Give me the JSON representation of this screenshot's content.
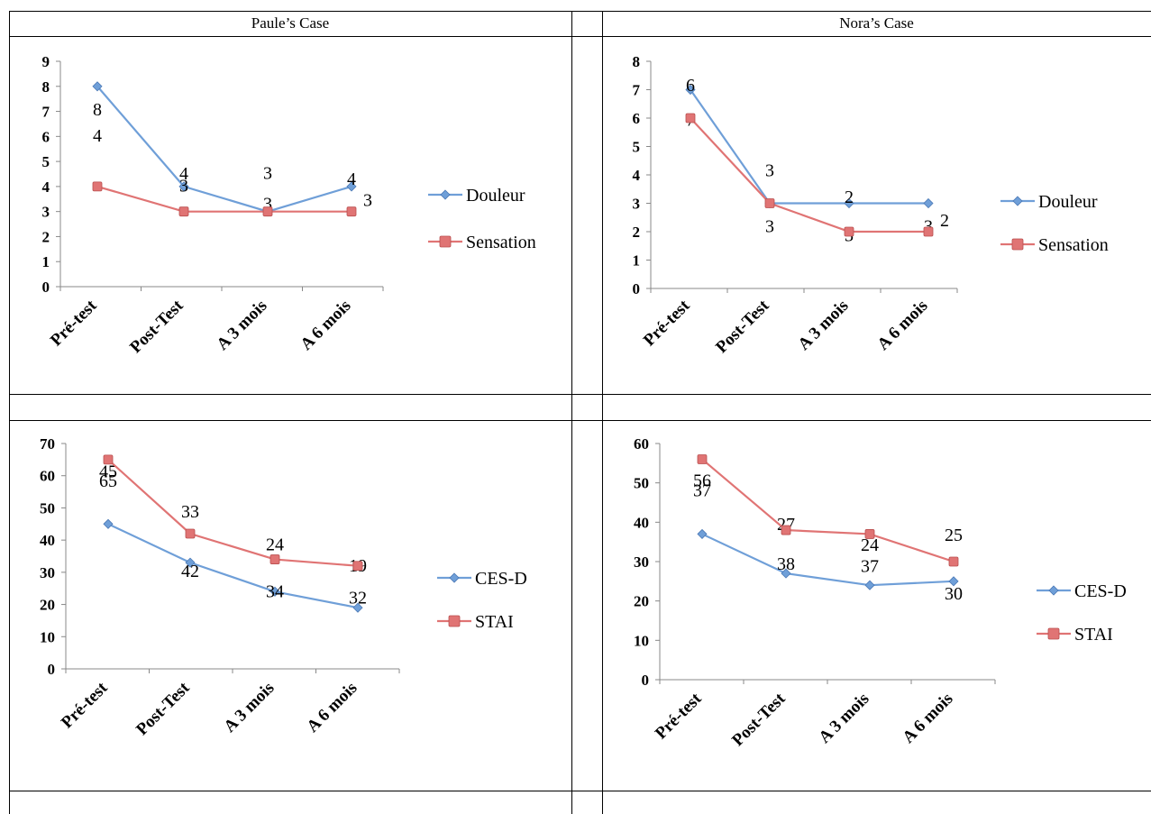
{
  "headers": {
    "left": "Paule’s Case",
    "right": "Nora’s Case"
  },
  "colors": {
    "series1": "#6f9fd8",
    "series2": "#e07474",
    "axis": "#888888"
  },
  "chart_data": [
    {
      "id": "paule-pain",
      "type": "line",
      "categories": [
        "Pré-test",
        "Post-Test",
        "A 3 mois",
        "A 6 mois"
      ],
      "ylim": [
        0,
        9
      ],
      "yticks": [
        0,
        1,
        2,
        3,
        4,
        5,
        6,
        7,
        8,
        9
      ],
      "legend": "right",
      "grid": false,
      "series": [
        {
          "name": "Douleur",
          "marker": "diamond",
          "values": [
            8,
            4,
            3,
            4
          ]
        },
        {
          "name": "Sensation",
          "marker": "square",
          "values": [
            4,
            3,
            3,
            3
          ]
        }
      ]
    },
    {
      "id": "nora-pain",
      "type": "line",
      "categories": [
        "Pré-test",
        "Post-Test",
        "A 3 mois",
        "A 6 mois"
      ],
      "ylim": [
        0,
        8
      ],
      "yticks": [
        0,
        1,
        2,
        3,
        4,
        5,
        6,
        7,
        8
      ],
      "legend": "right",
      "grid": false,
      "series": [
        {
          "name": "Douleur",
          "marker": "diamond",
          "values": [
            7,
            3,
            3,
            3
          ]
        },
        {
          "name": "Sensation",
          "marker": "square",
          "values": [
            6,
            3,
            2,
            2
          ]
        }
      ]
    },
    {
      "id": "paule-scales",
      "type": "line",
      "categories": [
        "Pré-test",
        "Post-Test",
        "A 3 mois",
        "A 6 mois"
      ],
      "ylim": [
        0,
        70
      ],
      "yticks": [
        0,
        10,
        20,
        30,
        40,
        50,
        60,
        70
      ],
      "legend": "right",
      "grid": false,
      "series": [
        {
          "name": "CES-D",
          "marker": "diamond",
          "values": [
            45,
            33,
            24,
            19
          ]
        },
        {
          "name": "STAI",
          "marker": "square",
          "values": [
            65,
            42,
            34,
            32
          ]
        }
      ]
    },
    {
      "id": "nora-scales",
      "type": "line",
      "categories": [
        "Pré-test",
        "Post-Test",
        "A 3 mois",
        "A 6 mois"
      ],
      "ylim": [
        0,
        60
      ],
      "yticks": [
        0,
        10,
        20,
        30,
        40,
        50,
        60
      ],
      "legend": "right",
      "grid": false,
      "series": [
        {
          "name": "CES-D",
          "marker": "diamond",
          "values": [
            37,
            27,
            24,
            25
          ]
        },
        {
          "name": "STAI",
          "marker": "square",
          "values": [
            56,
            38,
            37,
            30
          ]
        }
      ]
    }
  ]
}
